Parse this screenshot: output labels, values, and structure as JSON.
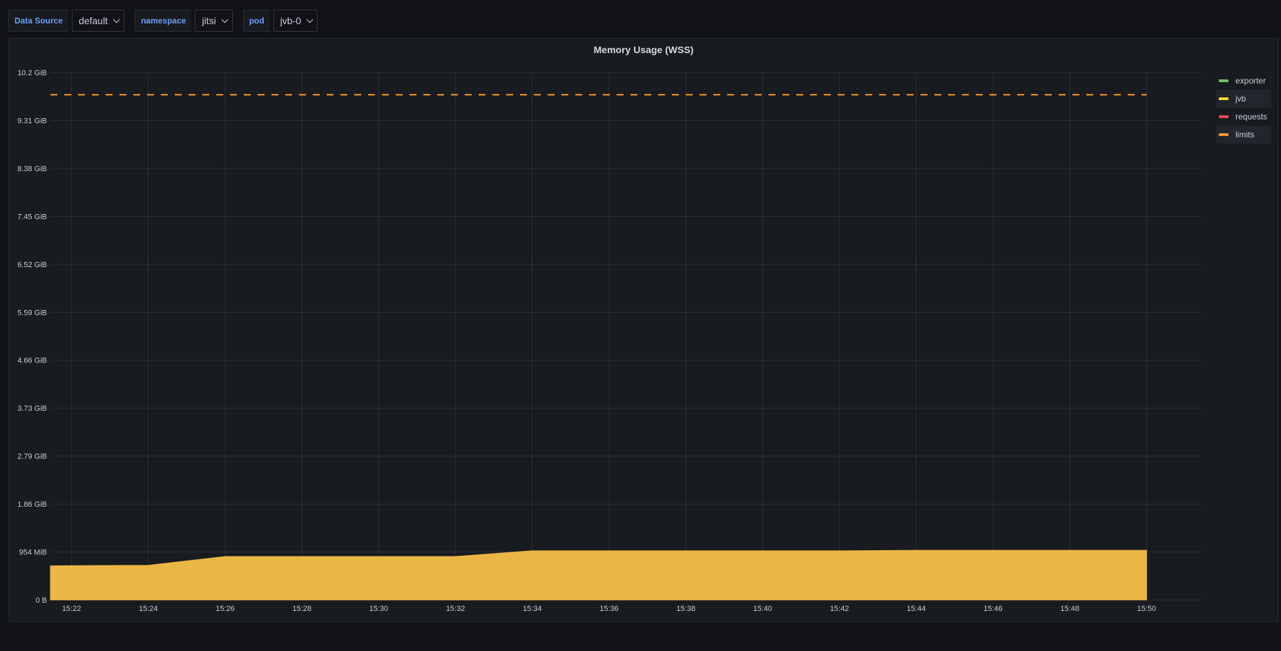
{
  "variables": [
    {
      "label": "Data Source",
      "value": "default"
    },
    {
      "label": "namespace",
      "value": "jitsi"
    },
    {
      "label": "pod",
      "value": "jvb-0"
    }
  ],
  "panel": {
    "title": "Memory Usage (WSS)"
  },
  "legend": [
    {
      "name": "exporter",
      "color": "#73bf69"
    },
    {
      "name": "jvb",
      "color": "#fade2a"
    },
    {
      "name": "requests",
      "color": "#f2495c"
    },
    {
      "name": "limits",
      "color": "#ff9830"
    }
  ],
  "chart_data": {
    "type": "area",
    "title": "Memory Usage (WSS)",
    "x_ticks": [
      "15:22",
      "15:24",
      "15:26",
      "15:28",
      "15:30",
      "15:32",
      "15:34",
      "15:36",
      "15:38",
      "15:40",
      "15:42",
      "15:44",
      "15:46",
      "15:48",
      "15:50"
    ],
    "x_range": [
      "15:21:27",
      "15:51:27"
    ],
    "y_ticks": [
      "0 B",
      "954 MiB",
      "1.86 GiB",
      "2.79 GiB",
      "3.73 GiB",
      "4.66 GiB",
      "5.59 GiB",
      "6.52 GiB",
      "7.45 GiB",
      "8.38 GiB",
      "9.31 GiB",
      "10.2 GiB"
    ],
    "y_range_gib": [
      0,
      10.2
    ],
    "series": [
      {
        "name": "jvb",
        "color": "#eab646",
        "style": "area",
        "x": [
          "15:21:27",
          "15:24",
          "15:26",
          "15:28",
          "15:30",
          "15:32",
          "15:34",
          "15:36",
          "15:38",
          "15:40",
          "15:42",
          "15:44",
          "15:46",
          "15:48",
          "15:50"
        ],
        "y_gib": [
          0.66,
          0.67,
          0.84,
          0.84,
          0.84,
          0.84,
          0.95,
          0.95,
          0.95,
          0.95,
          0.95,
          0.96,
          0.96,
          0.96,
          0.96
        ]
      },
      {
        "name": "limits",
        "color": "#ff9830",
        "style": "dashed",
        "x": [
          "15:21:27",
          "15:50"
        ],
        "y_gib": [
          9.77,
          9.77
        ]
      }
    ],
    "grid": true,
    "legend_position": "right"
  }
}
